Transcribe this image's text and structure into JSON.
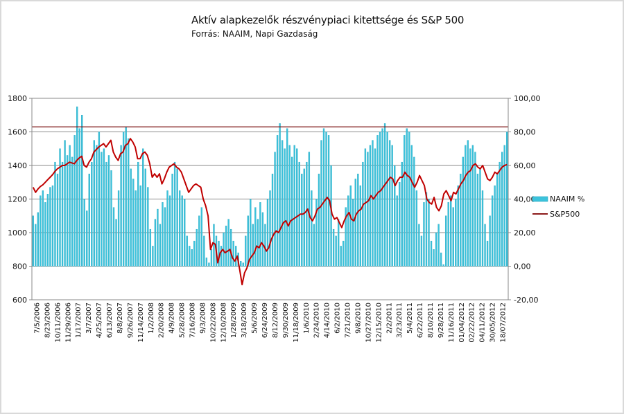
{
  "chart_data": {
    "type": "bar+line",
    "title": "Aktív alapkezelők részvénypiaci kitettsége és S&P 500",
    "subtitle": "Forrás: NAAIM, Napi Gazdaság",
    "left_axis": {
      "label": "",
      "ylim": [
        600,
        1800
      ],
      "ticks": [
        600,
        800,
        1000,
        1200,
        1400,
        1600,
        1800
      ]
    },
    "right_axis": {
      "label": "",
      "ylim": [
        -20,
        100
      ],
      "ticks": [
        "-20,00",
        "0,00",
        "20,00",
        "40,00",
        "60,00",
        "80,00",
        "100,00"
      ],
      "tick_values": [
        -20,
        0,
        20,
        40,
        60,
        80,
        100
      ]
    },
    "grid": true,
    "reference_line_right_axis": 83,
    "legend_position": "right",
    "x_tick_labels": [
      "7/5/2006",
      "8/23/2006",
      "10/11/2006",
      "11/29/2006",
      "1/17/2007",
      "3/7/2007",
      "4/25/2007",
      "6/13/2007",
      "8/8/2007",
      "9/26/2007",
      "11/14/2007",
      "1/2/2008",
      "2/20/2008",
      "4/9/2008",
      "5/28/2008",
      "7/16/2008",
      "9/3/2008",
      "10/22/2008",
      "12/10/2008",
      "1/28/2009",
      "3/18/2009",
      "5/6/2009",
      "6/24/2009",
      "8/12/2009",
      "9/30/2009",
      "11/18/2009",
      "1/6/2010",
      "2/24/2010",
      "4/14/2010",
      "6/2/2010",
      "7/21/2010",
      "9/8/2010",
      "10/27/2010",
      "12/15/2010",
      "2/2/2011",
      "3/23/2011",
      "5/4/2011",
      "6/22/2011",
      "8/10/2011",
      "9/28/2011",
      "11/16/2011",
      "01/04/2012",
      "02/22/2012",
      "04/11/2012",
      "30/05/2012",
      "18/07/2012"
    ],
    "series": [
      {
        "name": "NAAIM %",
        "type": "bar",
        "axis": "right",
        "color": "#3cc3dc",
        "values": [
          30,
          25,
          32,
          42,
          45,
          38,
          43,
          47,
          48,
          62,
          55,
          70,
          62,
          75,
          66,
          72,
          65,
          78,
          95,
          82,
          90,
          40,
          33,
          55,
          62,
          75,
          72,
          80,
          68,
          70,
          62,
          66,
          57,
          35,
          28,
          45,
          72,
          80,
          83,
          76,
          58,
          52,
          45,
          62,
          48,
          70,
          58,
          47,
          22,
          12,
          28,
          34,
          25,
          38,
          35,
          45,
          42,
          55,
          62,
          58,
          45,
          42,
          40,
          18,
          12,
          10,
          15,
          22,
          30,
          35,
          18,
          5,
          2,
          10,
          25,
          18,
          15,
          12,
          20,
          24,
          28,
          22,
          15,
          12,
          8,
          3,
          2,
          18,
          30,
          40,
          25,
          35,
          28,
          38,
          32,
          25,
          40,
          45,
          55,
          68,
          78,
          85,
          75,
          70,
          82,
          72,
          65,
          72,
          70,
          62,
          55,
          58,
          62,
          68,
          45,
          25,
          40,
          55,
          75,
          82,
          80,
          78,
          60,
          22,
          18,
          28,
          12,
          15,
          35,
          42,
          48,
          40,
          52,
          55,
          48,
          62,
          70,
          68,
          72,
          75,
          70,
          78,
          80,
          82,
          85,
          80,
          75,
          72,
          60,
          42,
          50,
          62,
          78,
          82,
          80,
          72,
          65,
          45,
          25,
          18,
          38,
          44,
          40,
          15,
          10,
          20,
          25,
          8,
          1,
          30,
          38,
          42,
          35,
          40,
          48,
          55,
          65,
          72,
          75,
          70,
          72,
          68,
          55,
          58,
          45,
          25,
          15,
          30,
          42,
          48,
          55,
          62,
          68,
          72,
          80
        ]
      },
      {
        "name": "S&P500",
        "type": "line",
        "axis": "left",
        "color": "#c00000",
        "values": [
          1270,
          1240,
          1260,
          1275,
          1285,
          1300,
          1315,
          1330,
          1345,
          1365,
          1380,
          1390,
          1400,
          1400,
          1410,
          1420,
          1415,
          1410,
          1430,
          1445,
          1455,
          1400,
          1390,
          1420,
          1440,
          1480,
          1495,
          1510,
          1520,
          1530,
          1510,
          1530,
          1550,
          1480,
          1450,
          1430,
          1470,
          1480,
          1520,
          1530,
          1560,
          1540,
          1510,
          1440,
          1440,
          1470,
          1480,
          1460,
          1410,
          1330,
          1350,
          1330,
          1350,
          1290,
          1320,
          1360,
          1390,
          1400,
          1410,
          1390,
          1380,
          1360,
          1320,
          1280,
          1240,
          1260,
          1280,
          1290,
          1280,
          1270,
          1200,
          1160,
          1100,
          900,
          940,
          930,
          820,
          880,
          900,
          880,
          890,
          900,
          850,
          830,
          860,
          780,
          690,
          760,
          790,
          840,
          860,
          880,
          920,
          910,
          940,
          920,
          890,
          910,
          960,
          990,
          1010,
          1000,
          1030,
          1060,
          1070,
          1040,
          1070,
          1080,
          1090,
          1100,
          1110,
          1110,
          1120,
          1140,
          1090,
          1070,
          1100,
          1140,
          1150,
          1170,
          1190,
          1210,
          1190,
          1110,
          1080,
          1090,
          1060,
          1030,
          1070,
          1100,
          1120,
          1080,
          1070,
          1110,
          1130,
          1140,
          1170,
          1180,
          1190,
          1220,
          1200,
          1220,
          1240,
          1250,
          1270,
          1290,
          1310,
          1330,
          1320,
          1280,
          1310,
          1330,
          1330,
          1360,
          1340,
          1330,
          1300,
          1270,
          1300,
          1340,
          1310,
          1280,
          1200,
          1180,
          1170,
          1210,
          1150,
          1130,
          1160,
          1230,
          1250,
          1220,
          1190,
          1240,
          1230,
          1260,
          1290,
          1310,
          1340,
          1360,
          1370,
          1400,
          1410,
          1390,
          1380,
          1400,
          1360,
          1320,
          1310,
          1330,
          1360,
          1350,
          1370,
          1390,
          1400,
          1405
        ]
      }
    ]
  }
}
